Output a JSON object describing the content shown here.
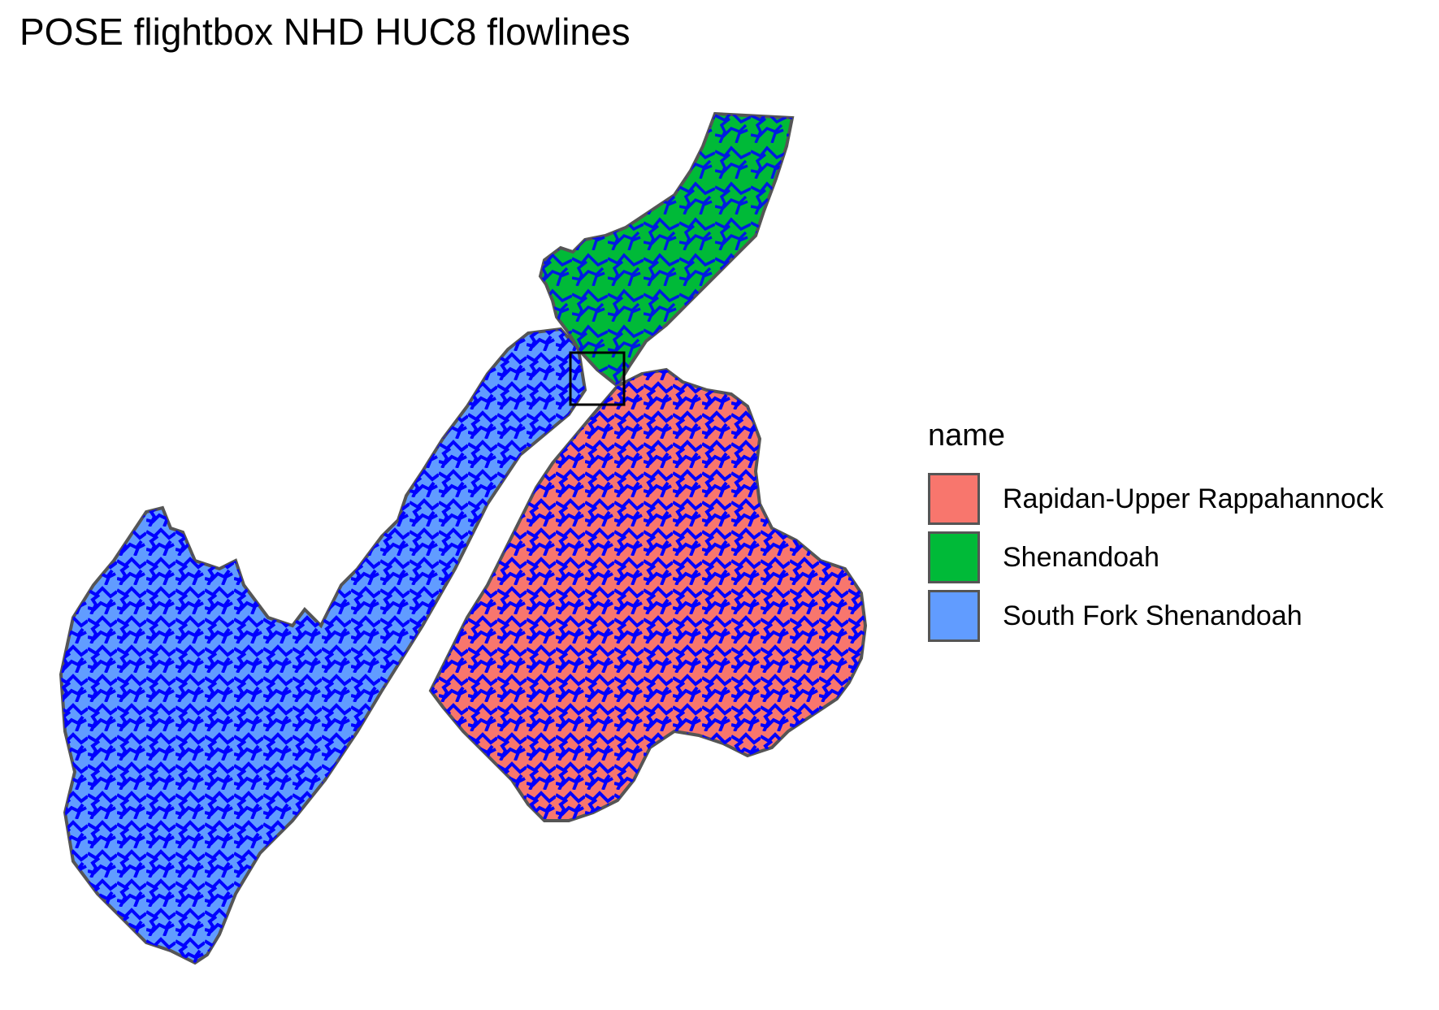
{
  "title": "POSE flightbox NHD HUC8 flowlines",
  "legend": {
    "title": "name",
    "items": [
      {
        "label": "Rapidan-Upper Rappahannock",
        "color": "#f8766d"
      },
      {
        "label": "Shenandoah",
        "color": "#00ba38"
      },
      {
        "label": "South Fork Shenandoah",
        "color": "#619cff"
      }
    ]
  },
  "colors": {
    "flowlines": "#0000ff",
    "boundary": "#555555",
    "flightbox": "#000000"
  }
}
